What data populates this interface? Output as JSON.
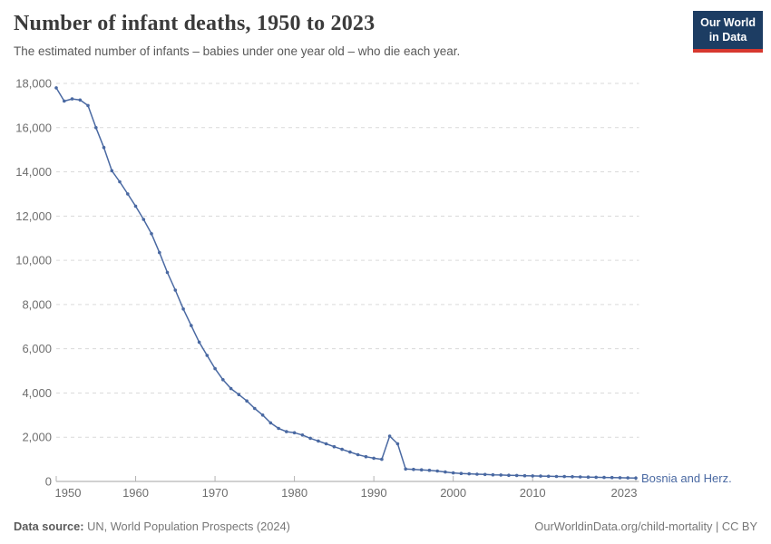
{
  "header": {
    "title": "Number of infant deaths, 1950 to 2023",
    "subtitle": "The estimated number of infants – babies under one year old – who die each year.",
    "logo": {
      "line1": "Our World",
      "line2": "in Data",
      "bg_color": "#1d3d63",
      "accent_color": "#d7382f"
    }
  },
  "chart_data": {
    "type": "line",
    "title": "Number of infant deaths, 1950 to 2023",
    "xlabel": "",
    "ylabel": "",
    "xlim": [
      1950,
      2023
    ],
    "ylim": [
      0,
      18000
    ],
    "grid": "horizontal-dashed",
    "legend_position": "end-of-line-label",
    "xticks": [
      1950,
      1960,
      1970,
      1980,
      1990,
      2000,
      2010,
      2023
    ],
    "yticks": [
      0,
      2000,
      4000,
      6000,
      8000,
      10000,
      12000,
      14000,
      16000,
      18000
    ],
    "x": [
      1950,
      1951,
      1952,
      1953,
      1954,
      1955,
      1956,
      1957,
      1958,
      1959,
      1960,
      1961,
      1962,
      1963,
      1964,
      1965,
      1966,
      1967,
      1968,
      1969,
      1970,
      1971,
      1972,
      1973,
      1974,
      1975,
      1976,
      1977,
      1978,
      1979,
      1980,
      1981,
      1982,
      1983,
      1984,
      1985,
      1986,
      1987,
      1988,
      1989,
      1990,
      1991,
      1992,
      1993,
      1994,
      1995,
      1996,
      1997,
      1998,
      1999,
      2000,
      2001,
      2002,
      2003,
      2004,
      2005,
      2006,
      2007,
      2008,
      2009,
      2010,
      2011,
      2012,
      2013,
      2014,
      2015,
      2016,
      2017,
      2018,
      2019,
      2020,
      2021,
      2022,
      2023
    ],
    "series": [
      {
        "name": "Bosnia and Herz.",
        "color": "#4a69a2",
        "values": [
          17800,
          17200,
          17300,
          17250,
          17000,
          16000,
          15100,
          14050,
          13550,
          13000,
          12450,
          11850,
          11200,
          10350,
          9450,
          8650,
          7800,
          7050,
          6300,
          5700,
          5100,
          4600,
          4200,
          3930,
          3640,
          3300,
          3000,
          2650,
          2400,
          2250,
          2200,
          2100,
          1950,
          1830,
          1700,
          1570,
          1450,
          1330,
          1210,
          1120,
          1050,
          1000,
          2050,
          1700,
          560,
          545,
          525,
          505,
          470,
          425,
          385,
          360,
          345,
          330,
          315,
          300,
          290,
          280,
          270,
          260,
          250,
          240,
          232,
          226,
          220,
          214,
          206,
          198,
          190,
          182,
          175,
          168,
          158,
          150
        ]
      }
    ],
    "colors": {
      "gridline": "#dadada",
      "axis": "#a3a3a3",
      "tick": "#b3b3b3",
      "tick_label": "#6e6e6e"
    }
  },
  "footer": {
    "source_label": "Data source:",
    "source_text": "UN, World Population Prospects (2024)",
    "credit": "OurWorldinData.org/child-mortality | CC BY"
  }
}
